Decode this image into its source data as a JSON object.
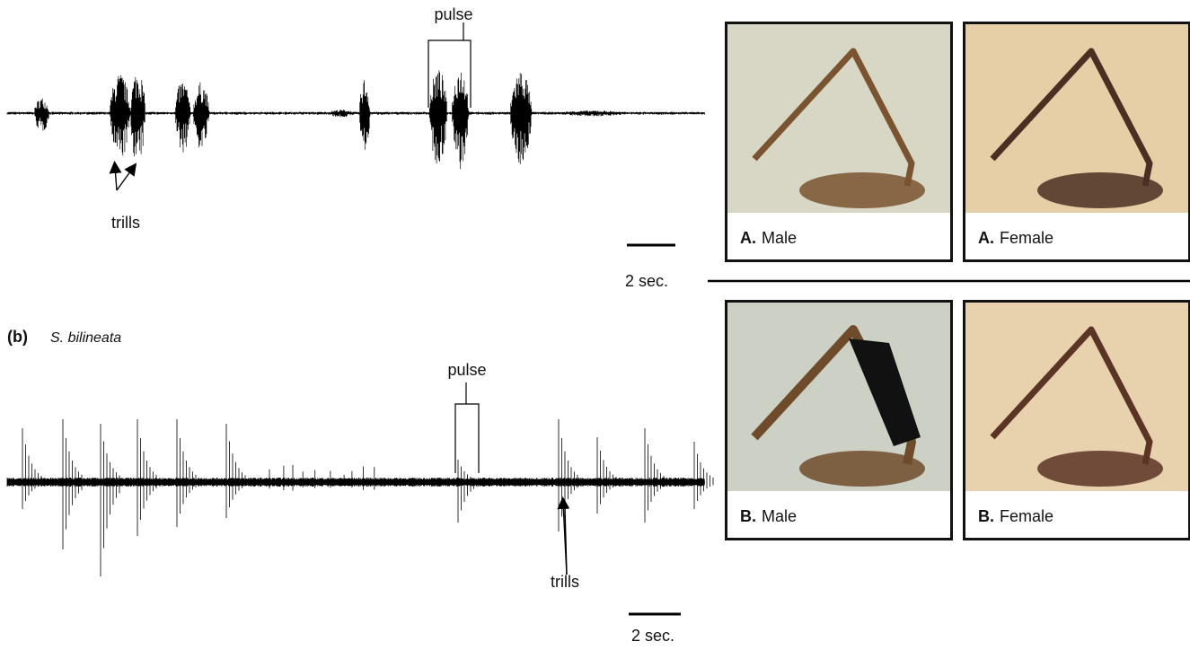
{
  "panel_a": {
    "pulse": "pulse",
    "trills": "trills",
    "scale_bar": "2 sec."
  },
  "panel_b": {
    "label": "(b)",
    "species": "S. bilineata",
    "pulse": "pulse",
    "trills": "trills",
    "scale_bar": "2 sec."
  },
  "photos": [
    {
      "letter": "A.",
      "caption": "Male"
    },
    {
      "letter": "A.",
      "caption": "Female"
    },
    {
      "letter": "B.",
      "caption": "Male"
    },
    {
      "letter": "B.",
      "caption": "Female"
    }
  ]
}
